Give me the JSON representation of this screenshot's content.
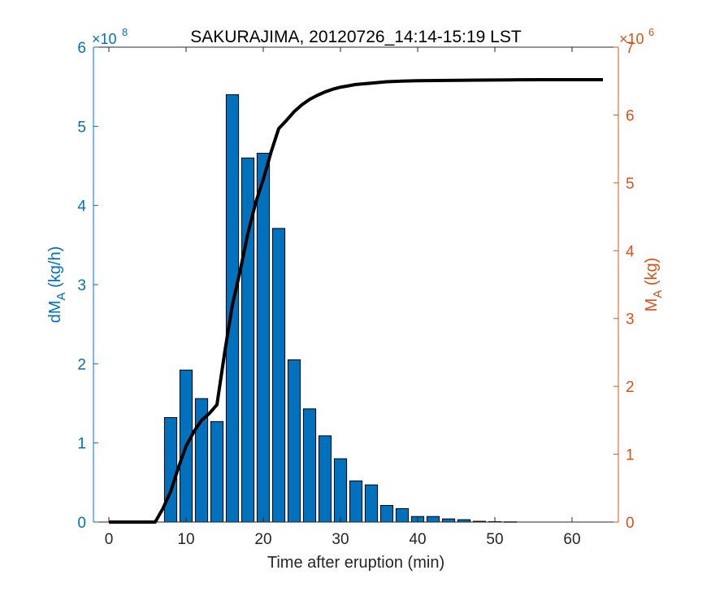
{
  "chart_data": {
    "type": "bar",
    "title": "SAKURAJIMA, 20120726_14:14-15:19 LST",
    "xlabel": "Time after eruption (min)",
    "ylabel_left": "dM_A (kg/h)",
    "ylabel_right": "M_A (kg)",
    "xlim": [
      -2,
      66
    ],
    "ylim_left": [
      0,
      6
    ],
    "ylim_right": [
      0,
      7
    ],
    "y_left_multiplier": "×10^8",
    "y_right_multiplier": "×10^6",
    "x_ticks": [
      0,
      10,
      20,
      30,
      40,
      50,
      60
    ],
    "y_left_ticks": [
      0,
      1,
      2,
      3,
      4,
      5,
      6
    ],
    "y_right_ticks": [
      0,
      1,
      2,
      3,
      4,
      5,
      6,
      7
    ],
    "grid": false,
    "bars": {
      "name": "dM_A",
      "color": "#0072BD",
      "edge_color": "#000000",
      "bar_width_min": 1.6,
      "x": [
        8,
        10,
        12,
        14,
        16,
        18,
        20,
        22,
        24,
        26,
        28,
        30,
        32,
        34,
        36,
        38,
        40,
        42,
        44,
        46,
        48,
        50,
        52
      ],
      "values": [
        1.32,
        1.92,
        1.56,
        1.27,
        5.4,
        4.6,
        4.66,
        3.71,
        2.05,
        1.43,
        1.09,
        0.8,
        0.52,
        0.47,
        0.21,
        0.17,
        0.07,
        0.07,
        0.04,
        0.03,
        0.01,
        0.005,
        0.003
      ]
    },
    "line": {
      "name": "M_A",
      "color": "#000000",
      "x": [
        0,
        6,
        7,
        8,
        9,
        10,
        11,
        12,
        13,
        14,
        15,
        16,
        17,
        18,
        19,
        20,
        21,
        22,
        23,
        24,
        25,
        26,
        27,
        28,
        29,
        30,
        32,
        34,
        36,
        38,
        40,
        44,
        48,
        52,
        56,
        60,
        64
      ],
      "values": [
        0,
        0,
        0.2,
        0.45,
        0.8,
        1.12,
        1.33,
        1.5,
        1.6,
        1.73,
        2.5,
        3.2,
        3.7,
        4.25,
        4.7,
        5.05,
        5.45,
        5.8,
        5.92,
        6.05,
        6.15,
        6.23,
        6.29,
        6.34,
        6.38,
        6.41,
        6.45,
        6.47,
        6.49,
        6.5,
        6.505,
        6.51,
        6.515,
        6.518,
        6.52,
        6.52,
        6.52
      ]
    },
    "left_axis_color": "#0072BD",
    "right_axis_color": "#D95319"
  }
}
